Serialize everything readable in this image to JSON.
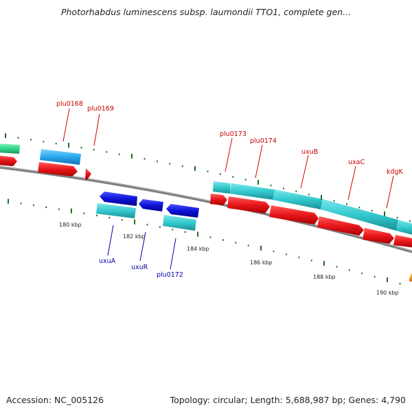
{
  "title": "Photorhabdus luminescens subsp. laumondii TTO1, complete gen...",
  "footer": {
    "accession": "Accession: NC_005126",
    "topology": "Topology: circular; Length: 5,688,987 bp; Genes: 4,790"
  },
  "colors": {
    "backbone": "#7a7a7a",
    "forward_cds": "#e8161a",
    "reverse_cds": "#0d14d6",
    "forward_gene": "#33c9cf",
    "label_forward": "#cc0000",
    "label_reverse": "#0000aa",
    "tick": "#1f6b1f"
  },
  "scale_labels": [
    "180 kbp",
    "182 kbp",
    "184 kbp",
    "186 kbp",
    "188 kbp",
    "190 kbp"
  ],
  "gene_labels": {
    "forward": [
      "plu0168",
      "plu0169",
      "plu0173",
      "plu0174",
      "uxuB",
      "uxaC",
      "kdgK"
    ],
    "reverse": [
      "uxuA",
      "uxuR",
      "plu0172"
    ]
  }
}
